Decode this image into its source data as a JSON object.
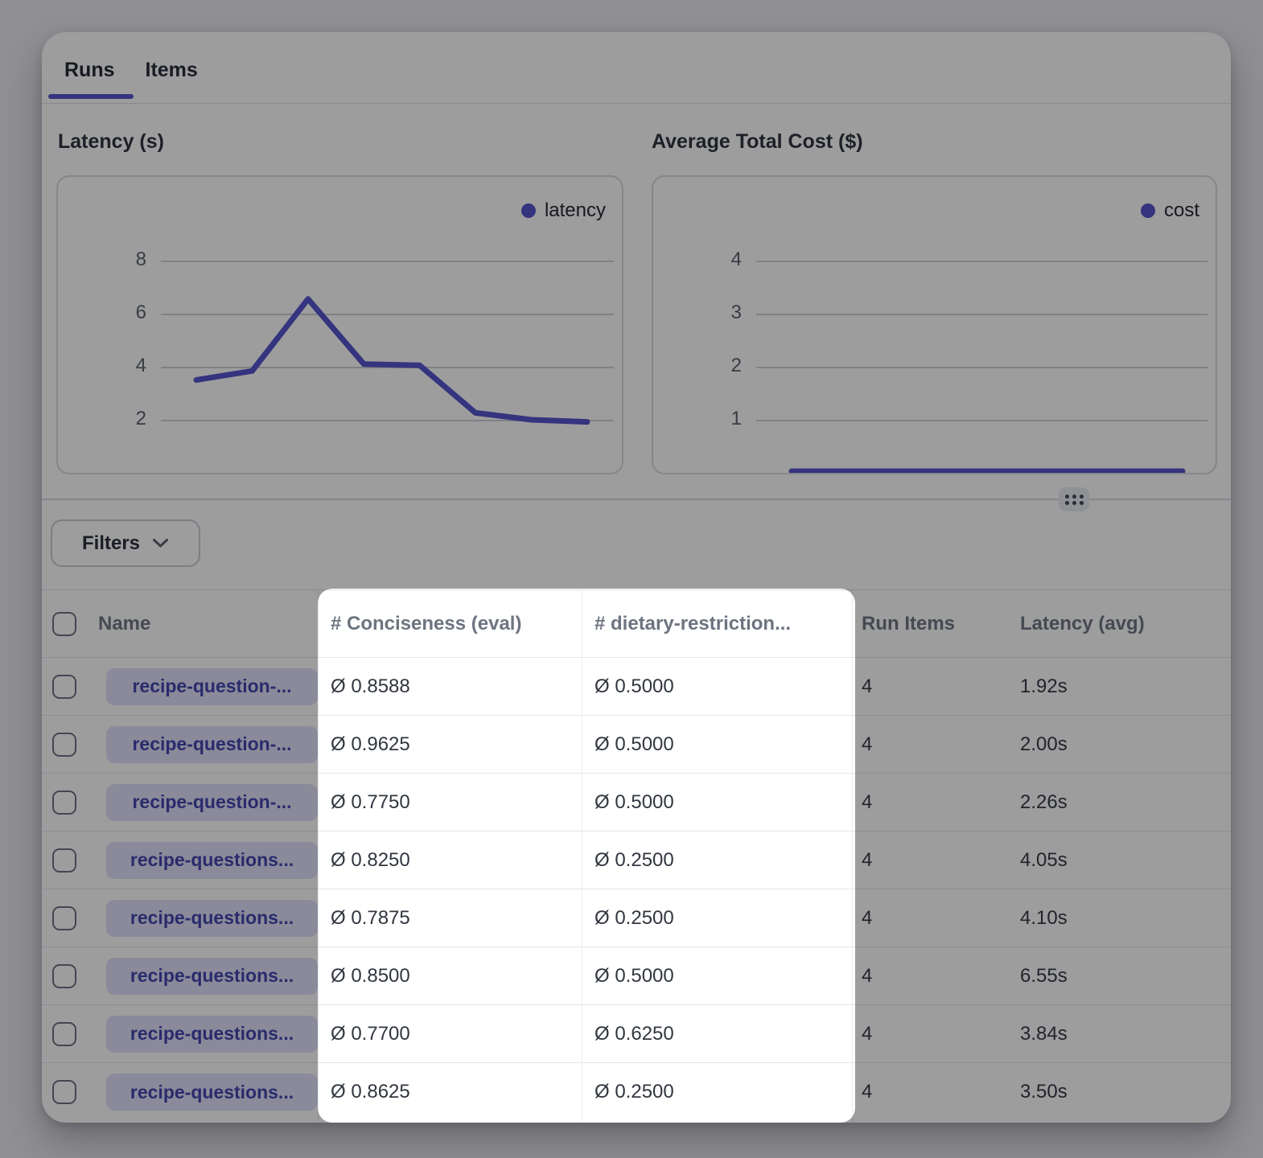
{
  "tabs": [
    {
      "label": "Runs",
      "active": true
    },
    {
      "label": "Items",
      "active": false
    }
  ],
  "charts": {
    "latency": {
      "title": "Latency (s)",
      "legend": "latency"
    },
    "cost": {
      "title": "Average Total Cost ($)",
      "legend": "cost"
    }
  },
  "chart_data": [
    {
      "type": "line",
      "name": "latency",
      "title": "Latency (s)",
      "legend_entries": [
        "latency"
      ],
      "x": [
        1,
        2,
        3,
        4,
        5,
        6,
        7,
        8
      ],
      "values": [
        3.5,
        3.84,
        6.55,
        4.1,
        4.05,
        2.26,
        2.0,
        1.92
      ],
      "yticks": [
        2,
        4,
        6,
        8
      ],
      "ylim": [
        0,
        9.3
      ],
      "grid": true,
      "legend_position": "top-right",
      "color": "#5250cb"
    },
    {
      "type": "line",
      "name": "cost",
      "title": "Average Total Cost ($)",
      "legend_entries": [
        "cost"
      ],
      "x": [
        1,
        2,
        3,
        4,
        5,
        6,
        7,
        8
      ],
      "values": [
        0.03,
        0.03,
        0.03,
        0.03,
        0.03,
        0.03,
        0.03,
        0.03
      ],
      "yticks": [
        1,
        2,
        3,
        4
      ],
      "ylim": [
        0,
        4.65
      ],
      "grid": true,
      "legend_position": "top-right",
      "color": "#5250cb"
    }
  ],
  "filters": {
    "label": "Filters"
  },
  "icons": {
    "chevron_down": "chevron-down-icon",
    "drag_handle": "drag-handle-icon",
    "average_symbol": "Ø"
  },
  "table": {
    "columns": {
      "name": "Name",
      "conciseness": "# Conciseness (eval)",
      "dietary": "# dietary-restriction...",
      "run_items": "Run Items",
      "latency": "Latency (avg)"
    },
    "rows": [
      {
        "name": "recipe-question-...",
        "conciseness": "Ø 0.8588",
        "dietary": "Ø 0.5000",
        "run_items": "4",
        "latency": "1.92s"
      },
      {
        "name": "recipe-question-...",
        "conciseness": "Ø 0.9625",
        "dietary": "Ø 0.5000",
        "run_items": "4",
        "latency": "2.00s"
      },
      {
        "name": "recipe-question-...",
        "conciseness": "Ø 0.7750",
        "dietary": "Ø 0.5000",
        "run_items": "4",
        "latency": "2.26s"
      },
      {
        "name": "recipe-questions...",
        "conciseness": "Ø 0.8250",
        "dietary": "Ø 0.2500",
        "run_items": "4",
        "latency": "4.05s"
      },
      {
        "name": "recipe-questions...",
        "conciseness": "Ø 0.7875",
        "dietary": "Ø 0.2500",
        "run_items": "4",
        "latency": "4.10s"
      },
      {
        "name": "recipe-questions...",
        "conciseness": "Ø 0.8500",
        "dietary": "Ø 0.5000",
        "run_items": "4",
        "latency": "6.55s"
      },
      {
        "name": "recipe-questions...",
        "conciseness": "Ø 0.7700",
        "dietary": "Ø 0.6250",
        "run_items": "4",
        "latency": "3.84s"
      },
      {
        "name": "recipe-questions...",
        "conciseness": "Ø 0.8625",
        "dietary": "Ø 0.2500",
        "run_items": "4",
        "latency": "3.50s"
      }
    ]
  },
  "colors": {
    "accent": "#5250cb",
    "badge_bg": "#e0e0f8",
    "badge_text": "#3e42ac",
    "spotlight_bg": "#ffffff",
    "overlay": "rgba(10,10,13,0.40)"
  }
}
